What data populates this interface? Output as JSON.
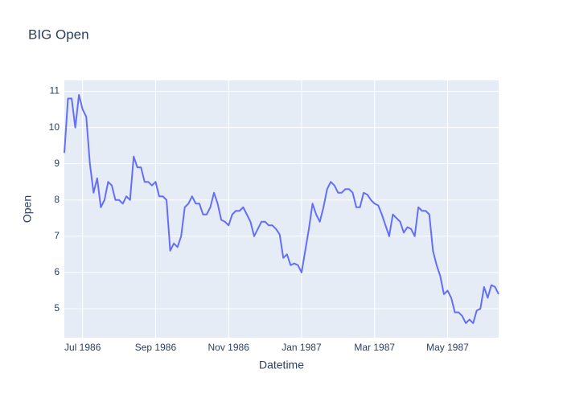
{
  "chart_data": {
    "type": "line",
    "title": "BIG Open",
    "x_label": "Datetime",
    "y_label": "Open",
    "categories": [
      null,
      null,
      null,
      null,
      null,
      "Jul 1986",
      null,
      null,
      null,
      null,
      null,
      null,
      null,
      null,
      null,
      null,
      null,
      null,
      null,
      null,
      null,
      null,
      null,
      null,
      null,
      "Sep 1986",
      null,
      null,
      null,
      null,
      null,
      null,
      null,
      null,
      null,
      null,
      null,
      null,
      null,
      null,
      null,
      null,
      null,
      null,
      null,
      "Nov 1986",
      null,
      null,
      null,
      null,
      null,
      null,
      null,
      null,
      null,
      null,
      null,
      null,
      null,
      null,
      null,
      null,
      null,
      null,
      null,
      "Jan 1987",
      null,
      null,
      null,
      null,
      null,
      null,
      null,
      null,
      null,
      null,
      null,
      null,
      null,
      null,
      null,
      null,
      null,
      null,
      null,
      "Mar 1987",
      null,
      null,
      null,
      null,
      null,
      null,
      null,
      null,
      null,
      null,
      null,
      null,
      null,
      null,
      null,
      null,
      null,
      null,
      null,
      "May 1987",
      null,
      null,
      null,
      null,
      null,
      null,
      null,
      null,
      null,
      null,
      null,
      null,
      null,
      null
    ],
    "values": [
      9.3,
      10.8,
      10.8,
      10.0,
      10.9,
      10.5,
      10.3,
      9.0,
      8.2,
      8.6,
      7.8,
      8.0,
      8.5,
      8.4,
      8.0,
      8.0,
      7.9,
      8.1,
      8.0,
      9.2,
      8.9,
      8.9,
      8.5,
      8.5,
      8.4,
      8.5,
      8.1,
      8.1,
      8.0,
      6.6,
      6.8,
      6.7,
      7.0,
      7.8,
      7.9,
      8.1,
      7.9,
      7.9,
      7.6,
      7.6,
      7.8,
      8.2,
      7.9,
      7.45,
      7.4,
      7.3,
      7.6,
      7.7,
      7.7,
      7.8,
      7.6,
      7.4,
      7.0,
      7.2,
      7.4,
      7.4,
      7.3,
      7.3,
      7.2,
      7.05,
      6.4,
      6.5,
      6.2,
      6.25,
      6.2,
      6.0,
      6.6,
      7.2,
      7.9,
      7.6,
      7.4,
      7.8,
      8.3,
      8.5,
      8.4,
      8.2,
      8.2,
      8.3,
      8.3,
      8.2,
      7.8,
      7.8,
      8.2,
      8.15,
      8.0,
      7.9,
      7.85,
      7.6,
      7.3,
      7.0,
      7.6,
      7.5,
      7.4,
      7.1,
      7.25,
      7.2,
      7.0,
      7.8,
      7.7,
      7.7,
      7.6,
      6.6,
      6.2,
      5.9,
      5.4,
      5.5,
      5.3,
      4.9,
      4.9,
      4.8,
      4.6,
      4.7,
      4.6,
      4.95,
      5.0,
      5.6,
      5.3,
      5.65,
      5.6,
      5.4
    ],
    "color": "#636efa",
    "ylim": [
      4.2,
      11.3
    ],
    "yticks": [
      5,
      6,
      7,
      8,
      9,
      10,
      11
    ],
    "grid": true
  }
}
